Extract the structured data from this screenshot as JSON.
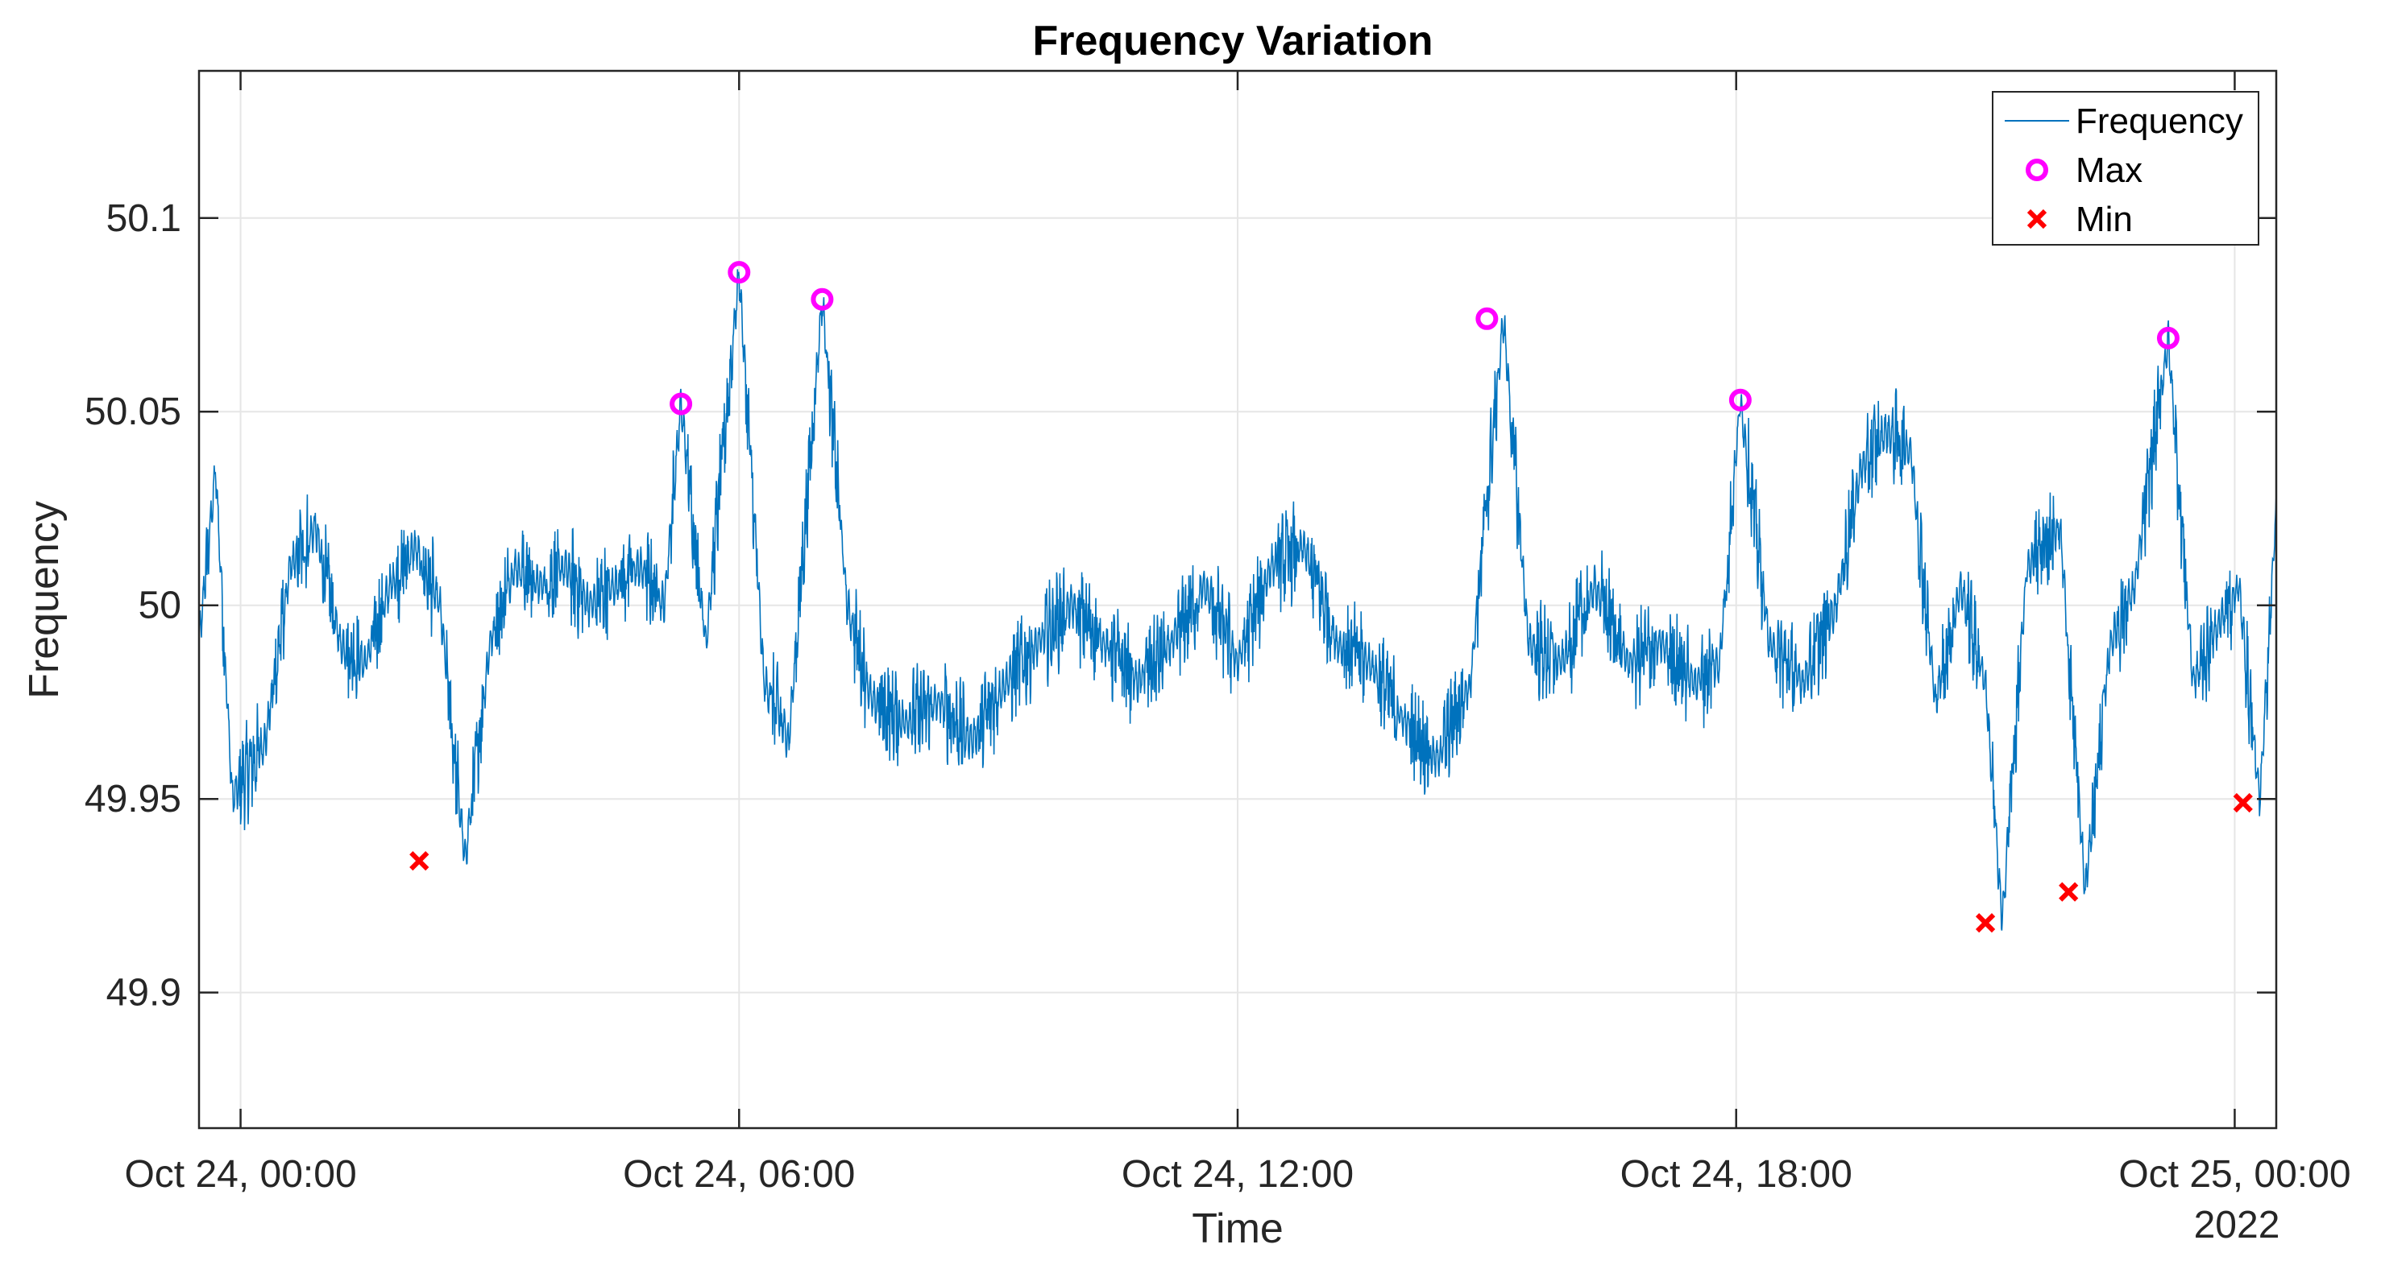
{
  "chart_data": {
    "type": "line",
    "title": "Frequency Variation",
    "xlabel": "Time",
    "ylabel": "Frequency",
    "x_start_hours": -0.5,
    "x_end_hours": 24.5,
    "ylim": [
      49.865,
      50.138
    ],
    "grid": true,
    "legend": {
      "placement": "top-right",
      "entries": [
        "Frequency",
        "Max",
        "Min"
      ]
    },
    "x_ticks": [
      {
        "hours": 0,
        "label": "Oct 24, 00:00"
      },
      {
        "hours": 6,
        "label": "Oct 24, 06:00"
      },
      {
        "hours": 12,
        "label": "Oct 24, 12:00"
      },
      {
        "hours": 18,
        "label": "Oct 24, 18:00"
      },
      {
        "hours": 24,
        "label": "Oct 25, 00:00"
      }
    ],
    "x_secondary_label": "2022",
    "y_ticks": [
      {
        "value": 49.9,
        "label": "49.9"
      },
      {
        "value": 49.95,
        "label": "49.95"
      },
      {
        "value": 50.0,
        "label": "50"
      },
      {
        "value": 50.05,
        "label": "50.05"
      },
      {
        "value": 50.1,
        "label": "50.1"
      }
    ],
    "series": [
      {
        "name": "Frequency",
        "color": "#0072BD",
        "approx_points": [
          {
            "x": -0.5,
            "y": 49.99
          },
          {
            "x": -0.3,
            "y": 50.035
          },
          {
            "x": -0.1,
            "y": 49.95
          },
          {
            "x": 0.3,
            "y": 49.965
          },
          {
            "x": 0.6,
            "y": 50.01
          },
          {
            "x": 0.9,
            "y": 50.02
          },
          {
            "x": 1.2,
            "y": 49.99
          },
          {
            "x": 1.5,
            "y": 49.985
          },
          {
            "x": 1.8,
            "y": 50.005
          },
          {
            "x": 2.1,
            "y": 50.015
          },
          {
            "x": 2.4,
            "y": 50.0
          },
          {
            "x": 2.7,
            "y": 49.934
          },
          {
            "x": 3.0,
            "y": 49.99
          },
          {
            "x": 3.3,
            "y": 50.01
          },
          {
            "x": 3.6,
            "y": 50.005
          },
          {
            "x": 3.9,
            "y": 50.01
          },
          {
            "x": 4.2,
            "y": 50.0
          },
          {
            "x": 4.5,
            "y": 50.005
          },
          {
            "x": 4.8,
            "y": 50.01
          },
          {
            "x": 5.1,
            "y": 50.0
          },
          {
            "x": 5.3,
            "y": 50.052
          },
          {
            "x": 5.6,
            "y": 49.99
          },
          {
            "x": 6.0,
            "y": 50.086
          },
          {
            "x": 6.3,
            "y": 49.98
          },
          {
            "x": 6.6,
            "y": 49.965
          },
          {
            "x": 7.0,
            "y": 50.079
          },
          {
            "x": 7.3,
            "y": 50.0
          },
          {
            "x": 7.6,
            "y": 49.975
          },
          {
            "x": 8.0,
            "y": 49.97
          },
          {
            "x": 8.4,
            "y": 49.975
          },
          {
            "x": 8.8,
            "y": 49.965
          },
          {
            "x": 9.2,
            "y": 49.98
          },
          {
            "x": 9.6,
            "y": 49.99
          },
          {
            "x": 10.0,
            "y": 50.0
          },
          {
            "x": 10.4,
            "y": 49.99
          },
          {
            "x": 10.8,
            "y": 49.98
          },
          {
            "x": 11.2,
            "y": 49.99
          },
          {
            "x": 11.6,
            "y": 50.005
          },
          {
            "x": 12.0,
            "y": 49.985
          },
          {
            "x": 12.4,
            "y": 50.01
          },
          {
            "x": 12.8,
            "y": 50.015
          },
          {
            "x": 13.2,
            "y": 49.99
          },
          {
            "x": 13.6,
            "y": 49.985
          },
          {
            "x": 14.0,
            "y": 49.97
          },
          {
            "x": 14.4,
            "y": 49.96
          },
          {
            "x": 14.8,
            "y": 49.98
          },
          {
            "x": 15.2,
            "y": 50.074
          },
          {
            "x": 15.5,
            "y": 49.99
          },
          {
            "x": 15.9,
            "y": 49.985
          },
          {
            "x": 16.3,
            "y": 50.005
          },
          {
            "x": 16.7,
            "y": 49.985
          },
          {
            "x": 17.1,
            "y": 49.99
          },
          {
            "x": 17.5,
            "y": 49.98
          },
          {
            "x": 17.8,
            "y": 49.985
          },
          {
            "x": 18.05,
            "y": 50.053
          },
          {
            "x": 18.4,
            "y": 49.99
          },
          {
            "x": 18.8,
            "y": 49.98
          },
          {
            "x": 19.2,
            "y": 50.0
          },
          {
            "x": 19.5,
            "y": 50.035
          },
          {
            "x": 19.8,
            "y": 50.045
          },
          {
            "x": 20.1,
            "y": 50.04
          },
          {
            "x": 20.4,
            "y": 49.975
          },
          {
            "x": 20.7,
            "y": 50.005
          },
          {
            "x": 21.0,
            "y": 49.98
          },
          {
            "x": 21.2,
            "y": 49.918
          },
          {
            "x": 21.5,
            "y": 50.01
          },
          {
            "x": 21.9,
            "y": 50.02
          },
          {
            "x": 22.2,
            "y": 49.926
          },
          {
            "x": 22.5,
            "y": 49.99
          },
          {
            "x": 22.8,
            "y": 50.005
          },
          {
            "x": 23.2,
            "y": 50.069
          },
          {
            "x": 23.5,
            "y": 49.98
          },
          {
            "x": 23.8,
            "y": 49.995
          },
          {
            "x": 24.05,
            "y": 50.005
          },
          {
            "x": 24.3,
            "y": 49.949
          },
          {
            "x": 24.5,
            "y": 50.025
          }
        ]
      },
      {
        "name": "Max",
        "color": "#FF00FF",
        "marker": "circle",
        "points": [
          {
            "x": 5.3,
            "y": 50.052
          },
          {
            "x": 6.0,
            "y": 50.086
          },
          {
            "x": 7.0,
            "y": 50.079
          },
          {
            "x": 15.0,
            "y": 50.074
          },
          {
            "x": 18.05,
            "y": 50.053
          },
          {
            "x": 23.2,
            "y": 50.069
          }
        ]
      },
      {
        "name": "Min",
        "color": "#FF0000",
        "marker": "x",
        "points": [
          {
            "x": 2.15,
            "y": 49.934
          },
          {
            "x": 21.0,
            "y": 49.918
          },
          {
            "x": 22.0,
            "y": 49.926
          },
          {
            "x": 24.1,
            "y": 49.949
          }
        ]
      }
    ]
  }
}
